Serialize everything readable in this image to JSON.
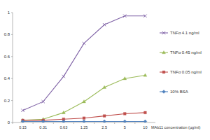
{
  "chart_data": {
    "type": "line",
    "x_label": "MAb11 concentration (µg/ml)",
    "categories": [
      "0.15",
      "0.31",
      "0.63",
      "1.25",
      "2.5",
      "5",
      "10"
    ],
    "ylim": [
      0,
      1
    ],
    "yticks": [
      0,
      0.2,
      0.4,
      0.6,
      0.8,
      1
    ],
    "grid": false,
    "legend": "right",
    "series": [
      {
        "name": "TNFα 4.1 ng/ml",
        "color": "#7f62a6",
        "marker": "x",
        "values": [
          0.11,
          0.19,
          0.42,
          0.72,
          0.89,
          0.97,
          0.97
        ]
      },
      {
        "name": "TNFα 0.45 ng/ml",
        "color": "#9bbb59",
        "marker": "triangle",
        "values": [
          0.02,
          0.03,
          0.09,
          0.19,
          0.32,
          0.4,
          0.43
        ]
      },
      {
        "name": "TNFα 0.05 ng/ml",
        "color": "#c0504d",
        "marker": "square",
        "values": [
          0.02,
          0.02,
          0.03,
          0.04,
          0.06,
          0.08,
          0.09
        ]
      },
      {
        "name": "10% BSA",
        "color": "#4f81bd",
        "marker": "diamond",
        "values": [
          0.01,
          0.01,
          0.01,
          0.01,
          0.01,
          0.01,
          0.01
        ]
      }
    ]
  }
}
